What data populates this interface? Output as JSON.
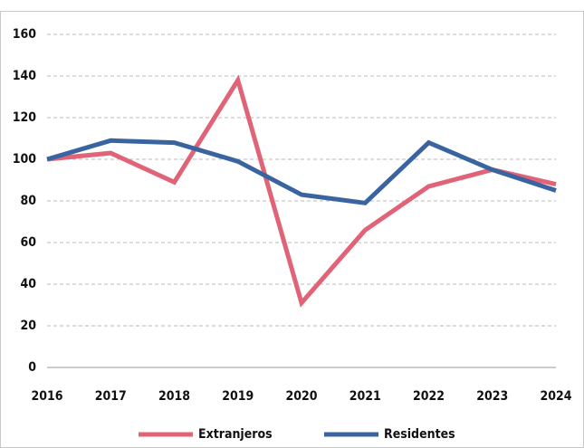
{
  "chart_data": {
    "type": "line",
    "categories": [
      "2016",
      "2017",
      "2018",
      "2019",
      "2020",
      "2021",
      "2022",
      "2023",
      "2024"
    ],
    "series": [
      {
        "name": "Extranjeros",
        "color": "#e06377",
        "values": [
          100,
          103,
          89,
          138,
          31,
          66,
          87,
          95,
          88
        ]
      },
      {
        "name": "Residentes",
        "color": "#3a64a0",
        "values": [
          100,
          109,
          108,
          99,
          83,
          79,
          108,
          95,
          85
        ]
      }
    ],
    "ylim": [
      0,
      160
    ],
    "yticks": [
      0,
      20,
      40,
      60,
      80,
      100,
      120,
      140,
      160
    ],
    "grid": true,
    "legend": "bottom"
  }
}
